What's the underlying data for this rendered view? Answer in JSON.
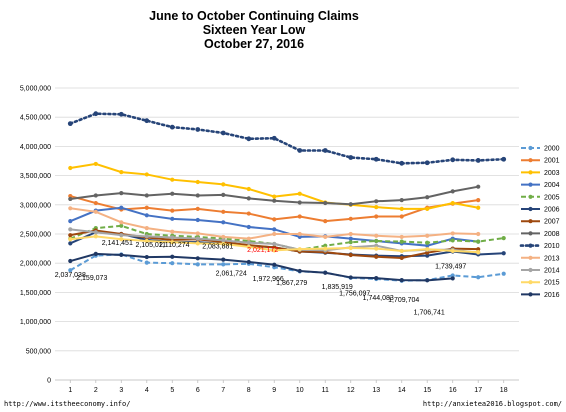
{
  "chart_data": {
    "type": "line",
    "title": [
      "June to October Continuing Claims",
      "Sixteen Year Low",
      "October 27, 2016"
    ],
    "xlabel": "",
    "ylabel": "",
    "x": [
      1,
      2,
      3,
      4,
      5,
      6,
      7,
      8,
      9,
      10,
      11,
      12,
      13,
      14,
      15,
      16,
      17,
      18
    ],
    "xlim": [
      0.4,
      18.6
    ],
    "ylim": [
      0,
      5000000
    ],
    "y_ticks": [
      "0",
      "500,000",
      "1,000,000",
      "1,500,000",
      "2,000,000",
      "2,500,000",
      "3,000,000",
      "3,500,000",
      "4,000,000",
      "4,500,000",
      "5,000,000"
    ],
    "y_tick_values": [
      0,
      500000,
      1000000,
      1500000,
      2000000,
      2500000,
      3000000,
      3500000,
      4000000,
      4500000,
      5000000
    ],
    "grid": true,
    "legend_position": "right",
    "series": [
      {
        "name": "2000",
        "color": "#5b9bd5",
        "dash": "5,3",
        "marker": "circle",
        "values": [
          1880000,
          2130000,
          2150000,
          2010000,
          2000000,
          1980000,
          1980000,
          1990000,
          1930000,
          1860000,
          1840000,
          1750000,
          1730000,
          1700000,
          1710000,
          1790000,
          1760000,
          1820000
        ]
      },
      {
        "name": "2001",
        "color": "#ed7d31",
        "dash": "",
        "marker": "circle",
        "values": [
          3150000,
          3030000,
          2920000,
          2950000,
          2900000,
          2930000,
          2880000,
          2850000,
          2750000,
          2800000,
          2720000,
          2760000,
          2800000,
          2800000,
          2950000,
          3020000,
          3080000,
          null
        ]
      },
      {
        "name": "2003",
        "color": "#ffc000",
        "dash": "",
        "marker": "circle",
        "values": [
          3630000,
          3700000,
          3560000,
          3520000,
          3430000,
          3390000,
          3350000,
          3270000,
          3140000,
          3190000,
          3040000,
          3000000,
          2960000,
          2930000,
          2930000,
          3030000,
          2950000,
          null
        ]
      },
      {
        "name": "2004",
        "color": "#4472c4",
        "dash": "",
        "marker": "circle",
        "values": [
          2720000,
          2900000,
          2950000,
          2820000,
          2760000,
          2740000,
          2700000,
          2620000,
          2580000,
          2450000,
          2460000,
          2420000,
          2380000,
          2340000,
          2300000,
          2420000,
          2370000,
          null
        ]
      },
      {
        "name": "2005",
        "color": "#70ad47",
        "dash": "5,3",
        "marker": "circle",
        "values": [
          2420000,
          2600000,
          2640000,
          2500000,
          2470000,
          2450000,
          2420000,
          2380000,
          2330000,
          2230000,
          2300000,
          2360000,
          2380000,
          2370000,
          2350000,
          2390000,
          2370000,
          2430000
        ]
      },
      {
        "name": "2006",
        "color": "#264478",
        "dash": "",
        "marker": "circle",
        "values": [
          2340000,
          2530000,
          2500000,
          2400000,
          2360000,
          2360000,
          2330000,
          2300000,
          2270000,
          2200000,
          2180000,
          2150000,
          2130000,
          2120000,
          2130000,
          2200000,
          2150000,
          2170000
        ]
      },
      {
        "name": "2007",
        "color": "#9e480e",
        "dash": "",
        "marker": "circle",
        "values": [
          2480000,
          2560000,
          2500000,
          2440000,
          2400000,
          2410000,
          2360000,
          2310000,
          2270000,
          2200000,
          2190000,
          2140000,
          2110000,
          2090000,
          2180000,
          2250000,
          2240000,
          null
        ]
      },
      {
        "name": "2008",
        "color": "#636363",
        "dash": "",
        "marker": "circle",
        "values": [
          3100000,
          3160000,
          3200000,
          3160000,
          3190000,
          3160000,
          3170000,
          3110000,
          3070000,
          3040000,
          3030000,
          3010000,
          3060000,
          3080000,
          3130000,
          3230000,
          3310000,
          null
        ]
      },
      {
        "name": "2010",
        "color": "#264478",
        "dash": "2,3",
        "marker": "circle",
        "values": [
          4390000,
          4560000,
          4550000,
          4440000,
          4330000,
          4290000,
          4230000,
          4130000,
          4140000,
          3930000,
          3930000,
          3810000,
          3780000,
          3710000,
          3720000,
          3770000,
          3760000,
          3780000
        ]
      },
      {
        "name": "2013",
        "color": "#f4b183",
        "dash": "",
        "marker": "circle",
        "values": [
          2940000,
          2880000,
          2700000,
          2600000,
          2540000,
          2510000,
          2450000,
          2420000,
          2500000,
          2500000,
          2450000,
          2500000,
          2470000,
          2450000,
          2470000,
          2510000,
          2500000,
          null
        ]
      },
      {
        "name": "2014",
        "color": "#a5a5a5",
        "dash": "",
        "marker": "circle",
        "values": [
          2580000,
          2530000,
          2480000,
          2460000,
          2440000,
          2420000,
          2390000,
          2350000,
          2330000,
          2230000,
          2220000,
          2270000,
          2300000,
          2210000,
          2230000,
          2230000,
          2180000,
          null
        ]
      },
      {
        "name": "2015",
        "color": "#ffd966",
        "dash": "",
        "marker": "circle",
        "values": [
          2410000,
          2460000,
          2410000,
          2380000,
          2360000,
          2340000,
          2330000,
          2280000,
          2220000,
          2240000,
          2250000,
          2260000,
          2250000,
          2210000,
          2240000,
          2210000,
          2190000,
          null
        ]
      },
      {
        "name": "2016",
        "color": "#203864",
        "dash": "",
        "marker": "circle",
        "values": [
          2037038,
          2159073,
          2141451,
          2105011,
          2110274,
          2083881,
          2061724,
          2021172,
          1972966,
          1867279,
          1835919,
          1756097,
          1744083,
          1709704,
          1706741,
          1739497,
          null,
          null
        ]
      }
    ],
    "annotations": [
      {
        "text": "2,037,038",
        "x": 1,
        "y": 2037038,
        "dx": 0,
        "dy": 16,
        "anchor": "middle",
        "highlight": false
      },
      {
        "text": "2,159,073",
        "x": 2,
        "y": 2159073,
        "dx": -4,
        "dy": 26,
        "anchor": "middle",
        "highlight": false
      },
      {
        "text": "2,141,451",
        "x": 3,
        "y": 2141451,
        "dx": -4,
        "dy": -10,
        "anchor": "middle",
        "highlight": false
      },
      {
        "text": "2,105,011",
        "x": 4,
        "y": 2105011,
        "dx": 4,
        "dy": -10,
        "anchor": "middle",
        "highlight": false
      },
      {
        "text": "2,110,274",
        "x": 5,
        "y": 2110274,
        "dx": 2,
        "dy": -10,
        "anchor": "middle",
        "highlight": false
      },
      {
        "text": "2,083,881",
        "x": 6,
        "y": 2083881,
        "dx": 20,
        "dy": -10,
        "anchor": "middle",
        "highlight": false
      },
      {
        "text": "2,061,724",
        "x": 7,
        "y": 2061724,
        "dx": 8,
        "dy": 16,
        "anchor": "middle",
        "highlight": false
      },
      {
        "text": "2,021,172",
        "x": 8,
        "y": 2021172,
        "dx": 14,
        "dy": -10,
        "anchor": "middle",
        "highlight": true
      },
      {
        "text": "1,972,966",
        "x": 9,
        "y": 1972966,
        "dx": -6,
        "dy": 16,
        "anchor": "middle",
        "highlight": false
      },
      {
        "text": "1,867,279",
        "x": 10,
        "y": 1867279,
        "dx": -8,
        "dy": 14,
        "anchor": "middle",
        "highlight": false
      },
      {
        "text": "1,835,919",
        "x": 11,
        "y": 1835919,
        "dx": 12,
        "dy": 16,
        "anchor": "middle",
        "highlight": false
      },
      {
        "text": "1,756,097",
        "x": 12,
        "y": 1756097,
        "dx": 4,
        "dy": 18,
        "anchor": "middle",
        "highlight": false
      },
      {
        "text": "1,744,083",
        "x": 13,
        "y": 1744083,
        "dx": 2,
        "dy": 22,
        "anchor": "middle",
        "highlight": false
      },
      {
        "text": "1,709,704",
        "x": 14,
        "y": 1709704,
        "dx": 2,
        "dy": 22,
        "anchor": "middle",
        "highlight": false
      },
      {
        "text": "1,706,741",
        "x": 15,
        "y": 1706741,
        "dx": 2,
        "dy": 34,
        "anchor": "middle",
        "highlight": false
      },
      {
        "text": "1,739,497",
        "x": 16,
        "y": 1739497,
        "dx": -2,
        "dy": -10,
        "anchor": "middle",
        "highlight": false
      }
    ]
  },
  "footer": {
    "left": "http://www.itstheeconomy.info/",
    "right": "http://anxietea2016.blogspot.com/"
  }
}
